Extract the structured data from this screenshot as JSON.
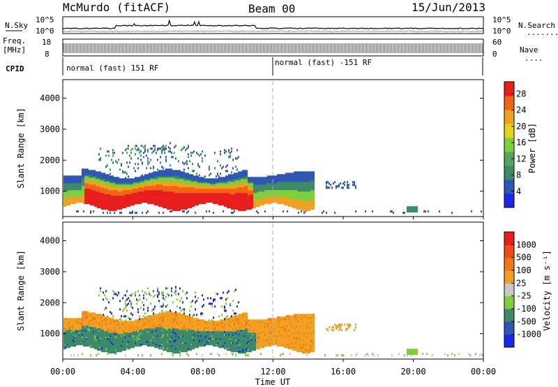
{
  "header": {
    "station": "McMurdo (fitACF)",
    "beam": "Beam 00",
    "date": "15/Jun/2013"
  },
  "chart_data": [
    {
      "type": "line",
      "name": "noise-panel",
      "left_label": "N.Sky",
      "right_label": "N.Search",
      "right_legend_symbol": "........",
      "left_ticks": [
        "10^5",
        "10^0"
      ],
      "right_ticks": [
        "10^5",
        "10^0"
      ],
      "scale": "log",
      "x_range": [
        0,
        24
      ]
    },
    {
      "type": "line",
      "name": "freq-nave-panel",
      "left_label_line1": "Freq.",
      "left_label_line2": "[MHz]",
      "right_label": "Nave",
      "right_legend_symbol": "....",
      "left_ticks": [
        "18",
        "8"
      ],
      "right_ticks": [
        "60",
        "0"
      ],
      "x_range": [
        0,
        24
      ]
    },
    {
      "type": "table",
      "name": "cpid-panel",
      "label": "CPID",
      "segments": [
        {
          "start_hour": 0,
          "end_hour": 12,
          "text": "normal (fast) 151 RF"
        },
        {
          "start_hour": 12,
          "end_hour": 24,
          "text": "normal (fast) -151 RF"
        }
      ]
    },
    {
      "type": "heatmap",
      "name": "power-panel",
      "ylabel": "Slant Range [km]",
      "y_ticks": [
        1000,
        2000,
        3000,
        4000
      ],
      "ylim": [
        180,
        4600
      ],
      "x_ticks": [
        "00:00",
        "04:00",
        "08:00",
        "12:00",
        "16:00",
        "20:00",
        "00:00"
      ],
      "x_range": [
        0,
        24
      ],
      "colorbar_label": "Power [dB]",
      "colorbar_ticks": [
        4,
        8,
        12,
        16,
        20,
        24,
        28
      ],
      "colorbar_range": [
        0,
        31
      ],
      "colorbar_colors": [
        "#1a26e6",
        "#2f56b4",
        "#3d8a6a",
        "#58a45c",
        "#7fcf3c",
        "#e6d21a",
        "#f0a022",
        "#f06414",
        "#e81e1e"
      ]
    },
    {
      "type": "heatmap",
      "name": "velocity-panel",
      "ylabel": "Slant Range [km]",
      "y_ticks": [
        1000,
        2000,
        3000,
        4000
      ],
      "ylim": [
        180,
        4600
      ],
      "x_ticks": [
        "00:00",
        "04:00",
        "08:00",
        "12:00",
        "16:00",
        "20:00",
        "00:00"
      ],
      "x_range": [
        0,
        24
      ],
      "xlabel": "Time UT",
      "colorbar_label": "Velocity [m s⁻¹]",
      "colorbar_ticks": [
        "1000",
        "500",
        "100",
        "25",
        "-25",
        "-100",
        "-500",
        "-1000"
      ],
      "colorbar_colors": [
        "#1a26e6",
        "#2f56b4",
        "#3d8a6a",
        "#7fcf3c",
        "#c8c8c8",
        "#f0a022",
        "#f07814",
        "#f04a14",
        "#e81e1e"
      ]
    }
  ]
}
